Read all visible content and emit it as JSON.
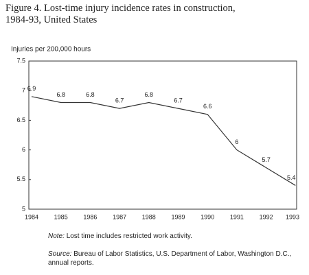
{
  "chart_data": {
    "type": "line",
    "title": "Figure 4. Lost-time injury incidence rates in construction, 1984-93, United States",
    "y_axis_label": "Injuries per 200,000 hours",
    "categories": [
      "1984",
      "1985",
      "1986",
      "1987",
      "1988",
      "1989",
      "1990",
      "1991",
      "1992",
      "1993"
    ],
    "values": [
      6.9,
      6.8,
      6.8,
      6.7,
      6.8,
      6.7,
      6.6,
      6,
      5.7,
      5.4
    ],
    "color": "#333333",
    "ylim": [
      5,
      7.5
    ],
    "yticks": [
      5,
      5.5,
      6,
      6.5,
      7,
      7.5
    ],
    "grid": false,
    "note_label": "Note:",
    "note_text": "Lost time includes restricted work activity.",
    "source_label": "Source:",
    "source_text": "Bureau of Labor Statistics, U.S. Department of Labor, Washington D.C., annual reports."
  }
}
